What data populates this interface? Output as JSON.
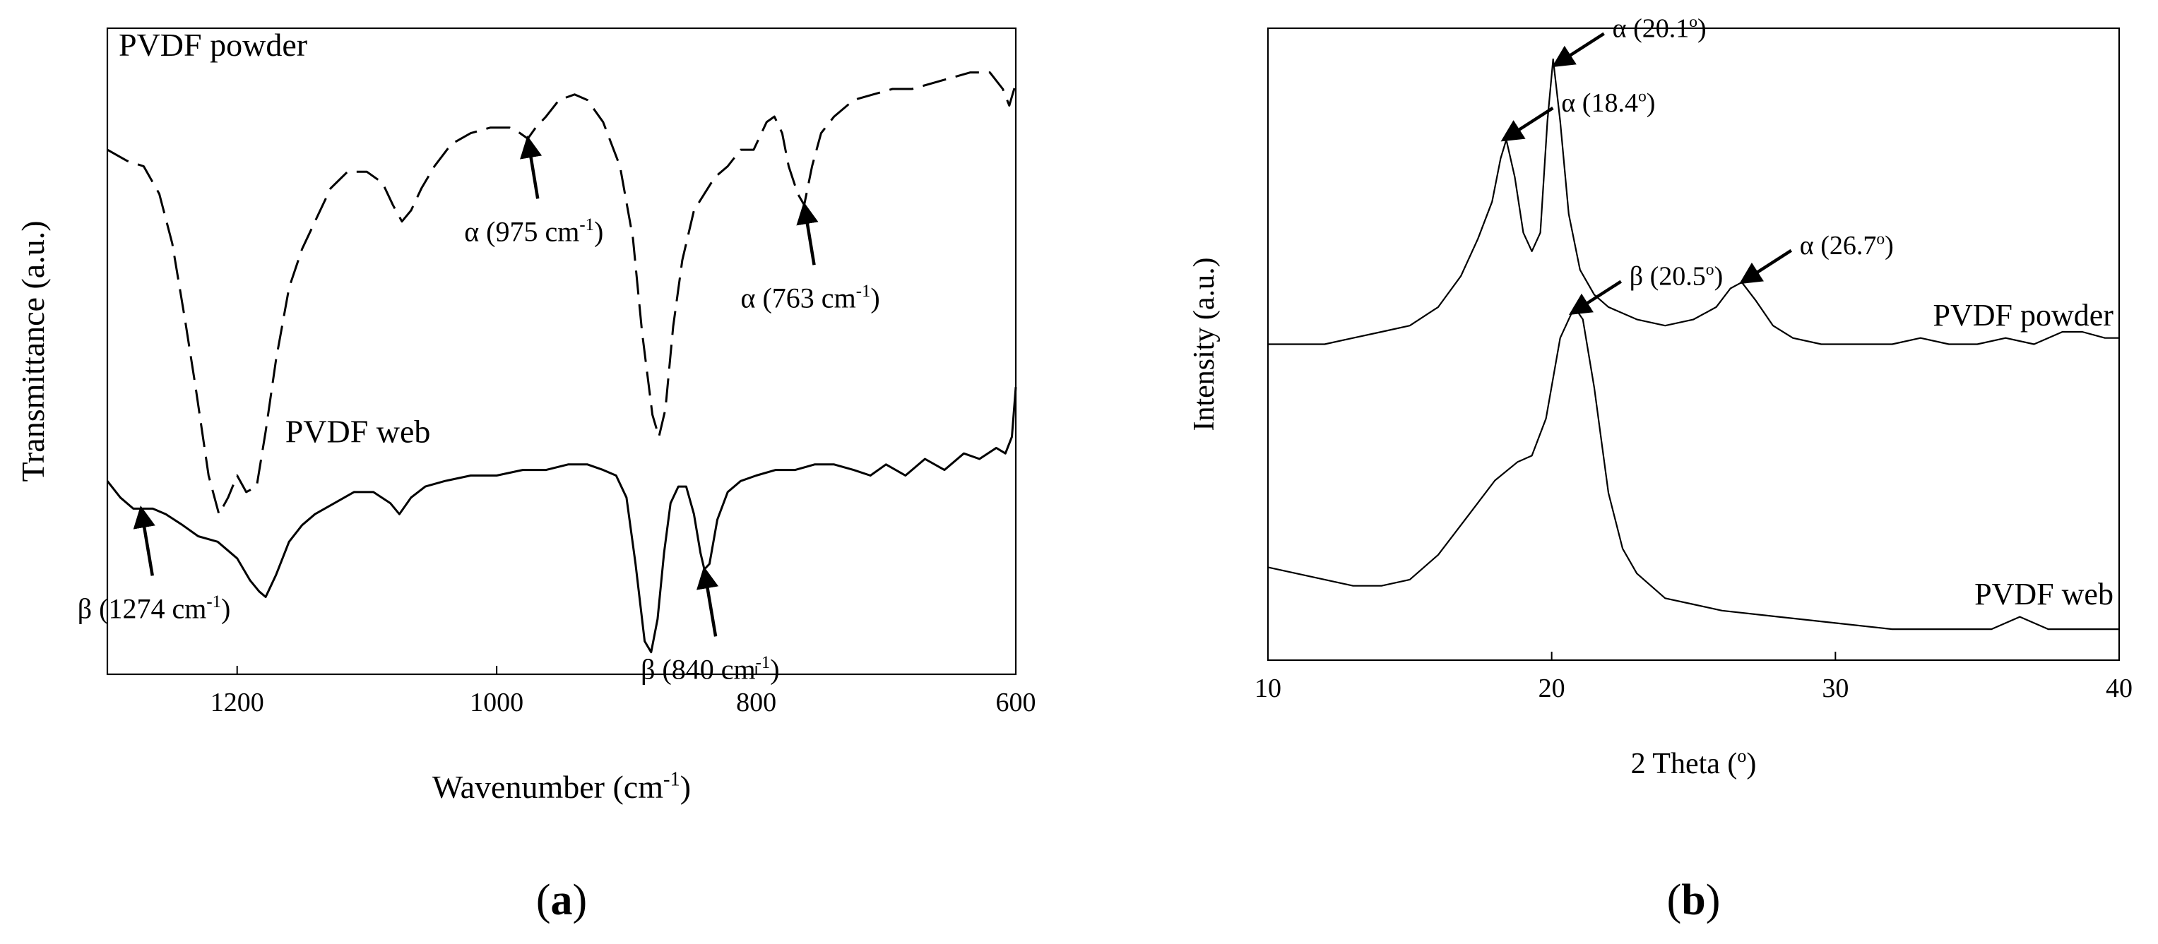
{
  "chart_data": [
    {
      "panel_label": "(a)",
      "type": "line",
      "xlabel": "Wavenumber (cm",
      "xlabel_sup": "-1",
      "xlabel_end": ")",
      "ylabel": "Transmittance (a.u.)",
      "xlim": [
        1300,
        600
      ],
      "x_reversed": true,
      "y_ticks_shown": false,
      "x_ticks": [
        1200,
        1000,
        800,
        600
      ],
      "grid": false,
      "series": [
        {
          "name": "PVDF powder",
          "line_style": "dashed",
          "points": [
            [
              1300,
              0.83
            ],
            [
              1285,
              0.81
            ],
            [
              1272,
              0.8
            ],
            [
              1260,
              0.75
            ],
            [
              1250,
              0.66
            ],
            [
              1240,
              0.52
            ],
            [
              1232,
              0.4
            ],
            [
              1222,
              0.24
            ],
            [
              1214,
              0.17
            ],
            [
              1207,
              0.2
            ],
            [
              1200,
              0.24
            ],
            [
              1193,
              0.21
            ],
            [
              1185,
              0.22
            ],
            [
              1178,
              0.32
            ],
            [
              1170,
              0.45
            ],
            [
              1160,
              0.58
            ],
            [
              1150,
              0.65
            ],
            [
              1138,
              0.71
            ],
            [
              1128,
              0.76
            ],
            [
              1115,
              0.79
            ],
            [
              1100,
              0.79
            ],
            [
              1088,
              0.77
            ],
            [
              1080,
              0.73
            ],
            [
              1073,
              0.7
            ],
            [
              1066,
              0.72
            ],
            [
              1058,
              0.76
            ],
            [
              1048,
              0.8
            ],
            [
              1035,
              0.84
            ],
            [
              1020,
              0.86
            ],
            [
              1005,
              0.87
            ],
            [
              990,
              0.87
            ],
            [
              982,
              0.86
            ],
            [
              976,
              0.85
            ],
            [
              970,
              0.87
            ],
            [
              962,
              0.89
            ],
            [
              952,
              0.92
            ],
            [
              940,
              0.93
            ],
            [
              930,
              0.92
            ],
            [
              918,
              0.88
            ],
            [
              905,
              0.8
            ],
            [
              895,
              0.67
            ],
            [
              888,
              0.5
            ],
            [
              880,
              0.35
            ],
            [
              875,
              0.31
            ],
            [
              870,
              0.36
            ],
            [
              864,
              0.51
            ],
            [
              857,
              0.63
            ],
            [
              848,
              0.72
            ],
            [
              840,
              0.75
            ],
            [
              832,
              0.78
            ],
            [
              822,
              0.8
            ],
            [
              812,
              0.83
            ],
            [
              802,
              0.83
            ],
            [
              792,
              0.88
            ],
            [
              786,
              0.89
            ],
            [
              780,
              0.86
            ],
            [
              775,
              0.8
            ],
            [
              768,
              0.75
            ],
            [
              763,
              0.73
            ],
            [
              757,
              0.8
            ],
            [
              750,
              0.86
            ],
            [
              740,
              0.89
            ],
            [
              725,
              0.92
            ],
            [
              710,
              0.93
            ],
            [
              695,
              0.94
            ],
            [
              680,
              0.94
            ],
            [
              665,
              0.95
            ],
            [
              650,
              0.96
            ],
            [
              635,
              0.97
            ],
            [
              620,
              0.97
            ],
            [
              610,
              0.94
            ],
            [
              605,
              0.91
            ],
            [
              600,
              0.95
            ]
          ]
        },
        {
          "name": "PVDF web",
          "line_style": "solid",
          "points": [
            [
              1300,
              0.23
            ],
            [
              1290,
              0.2
            ],
            [
              1280,
              0.18
            ],
            [
              1274,
              0.18
            ],
            [
              1265,
              0.18
            ],
            [
              1255,
              0.17
            ],
            [
              1242,
              0.15
            ],
            [
              1230,
              0.13
            ],
            [
              1215,
              0.12
            ],
            [
              1200,
              0.09
            ],
            [
              1190,
              0.05
            ],
            [
              1183,
              0.03
            ],
            [
              1178,
              0.02
            ],
            [
              1170,
              0.06
            ],
            [
              1160,
              0.12
            ],
            [
              1150,
              0.15
            ],
            [
              1140,
              0.17
            ],
            [
              1125,
              0.19
            ],
            [
              1110,
              0.21
            ],
            [
              1095,
              0.21
            ],
            [
              1082,
              0.19
            ],
            [
              1075,
              0.17
            ],
            [
              1066,
              0.2
            ],
            [
              1055,
              0.22
            ],
            [
              1040,
              0.23
            ],
            [
              1020,
              0.24
            ],
            [
              1000,
              0.24
            ],
            [
              980,
              0.25
            ],
            [
              962,
              0.25
            ],
            [
              945,
              0.26
            ],
            [
              930,
              0.26
            ],
            [
              918,
              0.25
            ],
            [
              908,
              0.24
            ],
            [
              900,
              0.2
            ],
            [
              893,
              0.08
            ],
            [
              886,
              -0.06
            ],
            [
              881,
              -0.08
            ],
            [
              876,
              -0.02
            ],
            [
              871,
              0.1
            ],
            [
              866,
              0.19
            ],
            [
              860,
              0.22
            ],
            [
              854,
              0.22
            ],
            [
              848,
              0.17
            ],
            [
              843,
              0.1
            ],
            [
              840,
              0.07
            ],
            [
              836,
              0.08
            ],
            [
              830,
              0.16
            ],
            [
              822,
              0.21
            ],
            [
              812,
              0.23
            ],
            [
              800,
              0.24
            ],
            [
              785,
              0.25
            ],
            [
              770,
              0.25
            ],
            [
              755,
              0.26
            ],
            [
              740,
              0.26
            ],
            [
              725,
              0.25
            ],
            [
              712,
              0.24
            ],
            [
              700,
              0.26
            ],
            [
              685,
              0.24
            ],
            [
              670,
              0.27
            ],
            [
              655,
              0.25
            ],
            [
              640,
              0.28
            ],
            [
              628,
              0.27
            ],
            [
              615,
              0.29
            ],
            [
              608,
              0.28
            ],
            [
              603,
              0.31
            ],
            [
              600,
              0.4
            ]
          ]
        }
      ],
      "series_labels": [
        {
          "text": "PVDF powder",
          "x": 1300,
          "y": 1.0
        },
        {
          "text": "PVDF web",
          "x": 1163,
          "y": 0.3
        }
      ],
      "annotations": [
        {
          "text": "α (975 cm",
          "sup": "-1",
          "end": ")",
          "target": [
            976,
            0.85
          ],
          "label": [
            980,
            0.6
          ]
        },
        {
          "text": "α (763 cm",
          "sup": "-1",
          "end": ")",
          "target": [
            763,
            0.73
          ],
          "label": [
            770,
            0.6
          ]
        },
        {
          "text": "β (1274 cm",
          "sup": "-1",
          "end": ")",
          "target": [
            1274,
            0.18
          ],
          "label": [
            1297,
            -0.07
          ]
        },
        {
          "text": "β (840 cm",
          "sup": "-1",
          "end": ")",
          "target": [
            840,
            0.07
          ],
          "label": [
            866,
            -0.07
          ]
        }
      ]
    },
    {
      "panel_label": "(b)",
      "type": "line",
      "xlabel": "2 Theta (",
      "xlabel_sup": "o",
      "xlabel_end": ")",
      "ylabel": "Intensity (a.u.)",
      "xlim": [
        10,
        40
      ],
      "y_ticks_shown": false,
      "x_ticks": [
        10,
        20,
        30,
        40
      ],
      "grid": false,
      "series": [
        {
          "name": "PVDF powder",
          "line_style": "solid",
          "points": [
            [
              10,
              0.49
            ],
            [
              11,
              0.49
            ],
            [
              12,
              0.49
            ],
            [
              13,
              0.5
            ],
            [
              14,
              0.51
            ],
            [
              15,
              0.52
            ],
            [
              16,
              0.55
            ],
            [
              16.8,
              0.6
            ],
            [
              17.4,
              0.66
            ],
            [
              17.9,
              0.72
            ],
            [
              18.2,
              0.79
            ],
            [
              18.4,
              0.82
            ],
            [
              18.7,
              0.76
            ],
            [
              19.0,
              0.67
            ],
            [
              19.3,
              0.64
            ],
            [
              19.6,
              0.67
            ],
            [
              19.85,
              0.85
            ],
            [
              20.05,
              0.95
            ],
            [
              20.3,
              0.85
            ],
            [
              20.6,
              0.7
            ],
            [
              21.0,
              0.61
            ],
            [
              21.5,
              0.57
            ],
            [
              22,
              0.55
            ],
            [
              23,
              0.53
            ],
            [
              24,
              0.52
            ],
            [
              25,
              0.53
            ],
            [
              25.8,
              0.55
            ],
            [
              26.3,
              0.58
            ],
            [
              26.7,
              0.59
            ],
            [
              27.2,
              0.56
            ],
            [
              27.8,
              0.52
            ],
            [
              28.5,
              0.5
            ],
            [
              29.5,
              0.49
            ],
            [
              31,
              0.49
            ],
            [
              32,
              0.49
            ],
            [
              33,
              0.5
            ],
            [
              34,
              0.49
            ],
            [
              35,
              0.49
            ],
            [
              36,
              0.5
            ],
            [
              37,
              0.49
            ],
            [
              38,
              0.51
            ],
            [
              38.7,
              0.51
            ],
            [
              39.5,
              0.5
            ],
            [
              40,
              0.5
            ]
          ]
        },
        {
          "name": "PVDF web",
          "line_style": "solid",
          "points": [
            [
              10,
              0.13
            ],
            [
              11,
              0.12
            ],
            [
              12,
              0.11
            ],
            [
              13,
              0.1
            ],
            [
              14,
              0.1
            ],
            [
              15,
              0.11
            ],
            [
              16,
              0.15
            ],
            [
              17,
              0.21
            ],
            [
              18,
              0.27
            ],
            [
              18.8,
              0.3
            ],
            [
              19.3,
              0.31
            ],
            [
              19.8,
              0.37
            ],
            [
              20.3,
              0.5
            ],
            [
              20.8,
              0.55
            ],
            [
              21.1,
              0.53
            ],
            [
              21.5,
              0.42
            ],
            [
              22,
              0.25
            ],
            [
              22.5,
              0.16
            ],
            [
              23,
              0.12
            ],
            [
              24,
              0.08
            ],
            [
              25,
              0.07
            ],
            [
              26,
              0.06
            ],
            [
              28,
              0.05
            ],
            [
              30,
              0.04
            ],
            [
              32,
              0.03
            ],
            [
              34,
              0.03
            ],
            [
              35.5,
              0.03
            ],
            [
              36.5,
              0.05
            ],
            [
              37.5,
              0.03
            ],
            [
              39,
              0.03
            ],
            [
              40,
              0.03
            ]
          ]
        }
      ],
      "series_labels": [
        {
          "text": "PVDF powder",
          "x": 39.8,
          "y": 0.52
        },
        {
          "text": "PVDF web",
          "x": 39.8,
          "y": 0.07
        }
      ],
      "annotations": [
        {
          "text": "α (18.4",
          "sup": "o",
          "end": ")",
          "target": [
            18.3,
            0.82
          ],
          "label": [
            17.9,
            0.94
          ]
        },
        {
          "text": "α (20.1",
          "sup": "o",
          "end": ")",
          "target": [
            20.1,
            0.94
          ],
          "label": [
            20.5,
            0.94
          ]
        },
        {
          "text": "α (26.7",
          "sup": "o",
          "end": ")",
          "target": [
            26.7,
            0.59
          ],
          "label": [
            27.0,
            0.69
          ]
        },
        {
          "text": "β (20.5",
          "sup": "o",
          "end": ")",
          "target": [
            20.7,
            0.54
          ],
          "label": [
            23.2,
            0.57
          ]
        }
      ]
    }
  ]
}
